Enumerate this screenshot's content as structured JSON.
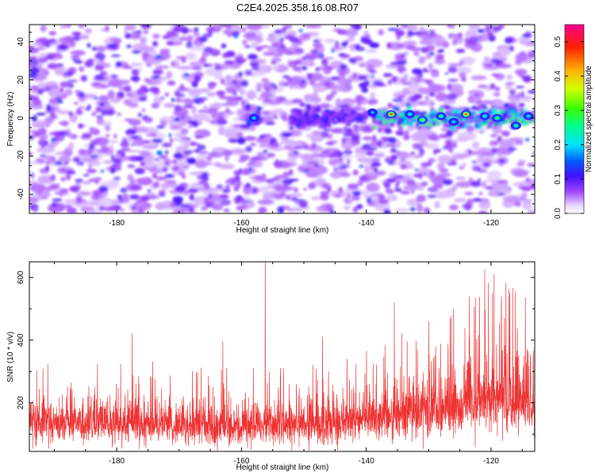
{
  "title": "C2E4.2025.358.16.08.R07",
  "chart_data": [
    {
      "type": "heatmap",
      "name": "spectrogram",
      "xlabel": "Height of straight line (km)",
      "ylabel": "Frequency (Hz)",
      "xlim": [
        -194,
        -113
      ],
      "ylim": [
        -50,
        49
      ],
      "xticks": [
        -180,
        -160,
        -140,
        -120
      ],
      "yticks": [
        -40,
        -20,
        0,
        20,
        40
      ],
      "colorbar": {
        "label": "Normalized spectral amplitude",
        "range": [
          0.0,
          0.55
        ],
        "ticks": [
          0.0,
          0.1,
          0.2,
          0.3,
          0.4,
          0.5
        ]
      },
      "signal_band": {
        "frequency_hz": 0,
        "segments": [
          {
            "x_start": -159,
            "x_end": -157,
            "peak_amplitude": 0.22
          },
          {
            "x_start": -152,
            "x_end": -140,
            "peak_amplitude": 0.12
          },
          {
            "x_start": -139,
            "x_end": -113,
            "peak_amplitude": 0.42
          }
        ]
      },
      "hotspots": [
        {
          "x": -136,
          "y": 2,
          "amplitude": 0.48
        },
        {
          "x": -124,
          "y": 2,
          "amplitude": 0.47
        },
        {
          "x": -131,
          "y": -1,
          "amplitude": 0.34
        },
        {
          "x": -119,
          "y": 0,
          "amplitude": 0.3
        },
        {
          "x": -128,
          "y": 1,
          "amplitude": 0.28
        },
        {
          "x": -116,
          "y": -4,
          "amplitude": 0.27
        },
        {
          "x": -158,
          "y": 0,
          "amplitude": 0.22
        },
        {
          "x": -133,
          "y": 2,
          "amplitude": 0.24
        },
        {
          "x": -121,
          "y": 1,
          "amplitude": 0.25
        },
        {
          "x": -139,
          "y": 3,
          "amplitude": 0.2
        },
        {
          "x": -114,
          "y": 1,
          "amplitude": 0.23
        },
        {
          "x": -126,
          "y": -2,
          "amplitude": 0.22
        }
      ]
    },
    {
      "type": "line",
      "name": "snr",
      "xlabel": "Height of straight line (km)",
      "ylabel": "SNR (10 * v/v)",
      "xlim": [
        -194,
        -113
      ],
      "ylim": [
        45,
        650
      ],
      "xticks": [
        -180,
        -160,
        -140,
        -120
      ],
      "yticks": [
        200,
        400,
        600
      ],
      "color": "#ee3333",
      "envelope": {
        "x": [
          -194,
          -180,
          -170,
          -160,
          -150,
          -145,
          -140,
          -135,
          -130,
          -125,
          -120,
          -115,
          -113
        ],
        "y_mean": [
          130,
          125,
          120,
          115,
          120,
          130,
          140,
          150,
          160,
          175,
          200,
          185,
          170
        ],
        "y_peak": [
          330,
          335,
          330,
          320,
          330,
          360,
          385,
          430,
          450,
          500,
          620,
          575,
          560
        ]
      },
      "spikes": [
        {
          "x": -156.2,
          "y": 655
        },
        {
          "x": -121.0,
          "y": 625
        },
        {
          "x": -119.5,
          "y": 610
        },
        {
          "x": -135.5,
          "y": 520
        },
        {
          "x": -117.0,
          "y": 550
        },
        {
          "x": -114.5,
          "y": 535
        },
        {
          "x": -126.0,
          "y": 500
        },
        {
          "x": -123.5,
          "y": 540
        },
        {
          "x": -177.5,
          "y": 422
        },
        {
          "x": -163.0,
          "y": 395
        },
        {
          "x": -147.0,
          "y": 410
        },
        {
          "x": -130.0,
          "y": 460
        }
      ]
    }
  ]
}
